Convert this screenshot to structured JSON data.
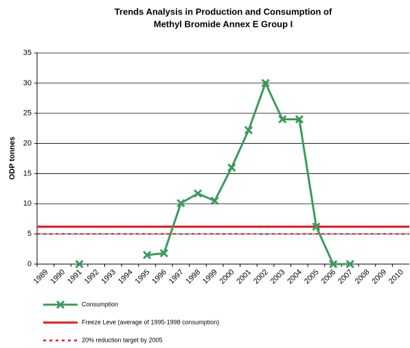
{
  "chart_data": {
    "type": "line",
    "title": [
      "Trends Analysis in Production and Consumption of",
      "Methyl Bromide Annex E Group I"
    ],
    "y_label": "ODP tonnes",
    "categories": [
      "1989",
      "1990",
      "1991",
      "1992",
      "1993",
      "1994",
      "1995",
      "1996",
      "1997",
      "1998",
      "1999",
      "2000",
      "2001",
      "2002",
      "2003",
      "2004",
      "2005",
      "2006",
      "2007",
      "2008",
      "2009",
      "2010"
    ],
    "series": [
      {
        "name": "Consumption",
        "color": "#3a9a5c",
        "values": [
          null,
          null,
          0,
          null,
          null,
          null,
          1.5,
          1.8,
          10.1,
          11.7,
          10.5,
          16,
          22.2,
          30,
          24,
          24,
          6.2,
          0,
          0,
          null,
          null,
          null
        ]
      }
    ],
    "reference_lines": [
      {
        "name": "Freeze Leve (average of 1995-1998 consumption)",
        "value": 6.2,
        "color": "#e3161e",
        "style": "solid"
      },
      {
        "name": "20% reduction target by 2005",
        "value": 5,
        "color": "#e3161e",
        "style": "dashed"
      }
    ],
    "ylim": [
      0,
      35
    ],
    "yticks": [
      0,
      5,
      10,
      15,
      20,
      25,
      30,
      35
    ],
    "grid": true
  }
}
